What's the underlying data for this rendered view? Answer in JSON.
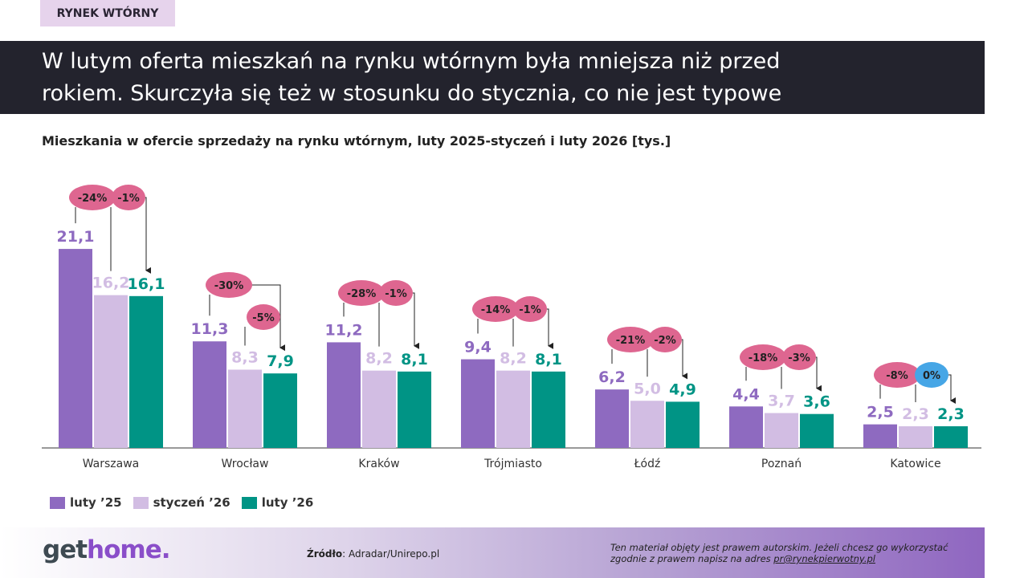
{
  "tag": "RYNEK WTÓRNY",
  "headline": {
    "line1": "W lutym oferta mieszkań na rynku wtórnym była mniejsza niż przed",
    "line2": "rokiem. Skurczyła się też w stosunku do stycznia, co nie jest typowe"
  },
  "chart_data": {
    "type": "bar",
    "title": "Mieszkania w ofercie sprzedaży na rynku wtórnym, luty 2025-styczeń i luty 2026  [tys.]",
    "categories": [
      "Warszawa",
      "Wrocław",
      "Kraków",
      "Trójmiasto",
      "Łódź",
      "Poznań",
      "Katowice"
    ],
    "series": [
      {
        "name": "luty '25",
        "color": "#8e6ac0",
        "values": [
          21.1,
          11.3,
          11.2,
          9.4,
          6.2,
          4.4,
          2.5
        ],
        "labels": [
          "21,1",
          "11,3",
          "11,2",
          "9,4",
          "6,2",
          "4,4",
          "2,5"
        ]
      },
      {
        "name": "styczeń '26",
        "color": "#d2bde3",
        "values": [
          16.2,
          8.3,
          8.2,
          8.2,
          5.0,
          3.7,
          2.3
        ],
        "labels": [
          "16,2",
          "8,3",
          "8,2",
          "8,2",
          "5,0",
          "3,7",
          "2,3"
        ]
      },
      {
        "name": "luty '26",
        "color": "#009485",
        "values": [
          16.1,
          7.9,
          8.1,
          8.1,
          4.9,
          3.6,
          2.3
        ],
        "labels": [
          "16,1",
          "7,9",
          "8,1",
          "8,1",
          "4,9",
          "3,6",
          "2,3"
        ]
      }
    ],
    "change_yoy": [
      "-24%",
      "-30%",
      "-28%",
      "-14%",
      "-21%",
      "-18%",
      "-8%"
    ],
    "change_mom": [
      "-1%",
      "-5%",
      "-1%",
      "-1%",
      "-2%",
      "-3%",
      "0%"
    ],
    "colors": {
      "decline_pill": "#de6690",
      "flat_pill": "#46a6e6"
    },
    "grid": false,
    "legend": "bottom-left"
  },
  "legend": [
    "luty ’25",
    "styczeń ’26",
    "luty ’26"
  ],
  "footer": {
    "logo": "gethome.",
    "logo_a": "get",
    "logo_b": "home.",
    "source_label": "Źródło",
    "source": ": Adradar/Unirepo.pl",
    "copyright_1": "Ten materiał objęty jest prawem autorskim. Jeżeli chcesz go wykorzystać",
    "copyright_2": "zgodnie z prawem napisz na adres ",
    "email": "pr@rynekpierwotny.pl"
  }
}
